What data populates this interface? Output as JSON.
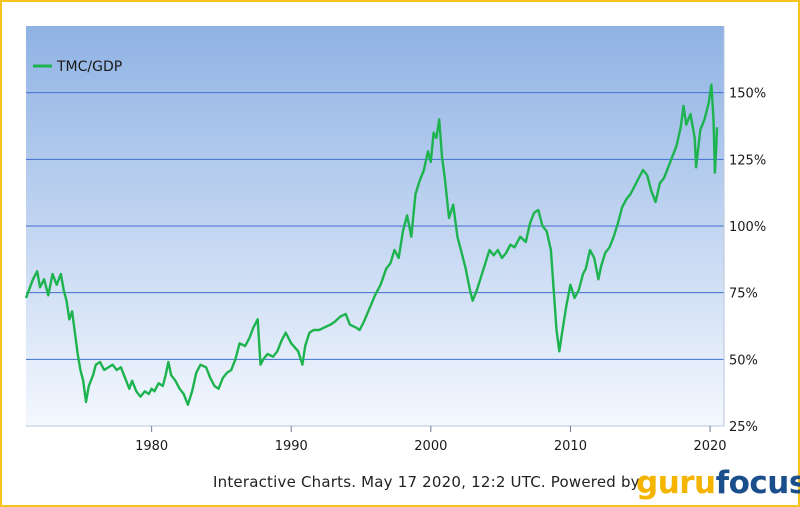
{
  "chart_data": {
    "type": "line",
    "legend_position": "top-left",
    "grid": true,
    "ylim": [
      25,
      175
    ],
    "xlim": [
      1971,
      2021
    ],
    "y_ticks": [
      25,
      50,
      75,
      100,
      125,
      150
    ],
    "y_tick_labels": [
      "25%",
      "50%",
      "75%",
      "100%",
      "125%",
      "150%"
    ],
    "x_ticks": [
      1980,
      1990,
      2000,
      2010,
      2020
    ],
    "x_tick_labels": [
      "1980",
      "1990",
      "2000",
      "2010",
      "2020"
    ],
    "series": [
      {
        "name": "TMC/GDP",
        "color": "#1db34f",
        "points": [
          [
            1971.0,
            73
          ],
          [
            1971.5,
            80
          ],
          [
            1971.8,
            83
          ],
          [
            1972.0,
            77
          ],
          [
            1972.3,
            80
          ],
          [
            1972.6,
            74
          ],
          [
            1972.9,
            82
          ],
          [
            1973.2,
            78
          ],
          [
            1973.5,
            82
          ],
          [
            1973.7,
            76
          ],
          [
            1973.9,
            72
          ],
          [
            1974.1,
            65
          ],
          [
            1974.3,
            68
          ],
          [
            1974.5,
            60
          ],
          [
            1974.7,
            52
          ],
          [
            1974.9,
            46
          ],
          [
            1975.1,
            42
          ],
          [
            1975.3,
            34
          ],
          [
            1975.5,
            40
          ],
          [
            1975.8,
            44
          ],
          [
            1976.0,
            48
          ],
          [
            1976.3,
            49
          ],
          [
            1976.6,
            46
          ],
          [
            1976.9,
            47
          ],
          [
            1977.2,
            48
          ],
          [
            1977.5,
            46
          ],
          [
            1977.8,
            47
          ],
          [
            1978.1,
            43
          ],
          [
            1978.4,
            39
          ],
          [
            1978.6,
            42
          ],
          [
            1978.9,
            38
          ],
          [
            1979.2,
            36
          ],
          [
            1979.5,
            38
          ],
          [
            1979.8,
            37
          ],
          [
            1980.0,
            39
          ],
          [
            1980.2,
            38
          ],
          [
            1980.5,
            41
          ],
          [
            1980.8,
            40
          ],
          [
            1981.0,
            44
          ],
          [
            1981.2,
            49
          ],
          [
            1981.4,
            44
          ],
          [
            1981.7,
            42
          ],
          [
            1982.0,
            39
          ],
          [
            1982.3,
            37
          ],
          [
            1982.6,
            33
          ],
          [
            1982.9,
            38
          ],
          [
            1983.2,
            45
          ],
          [
            1983.5,
            48
          ],
          [
            1983.9,
            47
          ],
          [
            1984.2,
            43
          ],
          [
            1984.5,
            40
          ],
          [
            1984.8,
            39
          ],
          [
            1985.1,
            43
          ],
          [
            1985.4,
            45
          ],
          [
            1985.7,
            46
          ],
          [
            1986.0,
            50
          ],
          [
            1986.3,
            56
          ],
          [
            1986.7,
            55
          ],
          [
            1987.0,
            58
          ],
          [
            1987.3,
            62
          ],
          [
            1987.6,
            65
          ],
          [
            1987.8,
            48
          ],
          [
            1988.0,
            50
          ],
          [
            1988.3,
            52
          ],
          [
            1988.7,
            51
          ],
          [
            1989.0,
            53
          ],
          [
            1989.3,
            57
          ],
          [
            1989.6,
            60
          ],
          [
            1990.0,
            56
          ],
          [
            1990.5,
            53
          ],
          [
            1990.8,
            48
          ],
          [
            1991.0,
            55
          ],
          [
            1991.3,
            60
          ],
          [
            1991.6,
            61
          ],
          [
            1992.0,
            61
          ],
          [
            1992.4,
            62
          ],
          [
            1992.8,
            63
          ],
          [
            1993.1,
            64
          ],
          [
            1993.5,
            66
          ],
          [
            1993.9,
            67
          ],
          [
            1994.2,
            63
          ],
          [
            1994.6,
            62
          ],
          [
            1994.9,
            61
          ],
          [
            1995.2,
            64
          ],
          [
            1995.6,
            69
          ],
          [
            1996.0,
            74
          ],
          [
            1996.4,
            78
          ],
          [
            1996.8,
            84
          ],
          [
            1997.1,
            86
          ],
          [
            1997.4,
            91
          ],
          [
            1997.7,
            88
          ],
          [
            1998.0,
            98
          ],
          [
            1998.3,
            104
          ],
          [
            1998.6,
            96
          ],
          [
            1998.9,
            112
          ],
          [
            1999.2,
            117
          ],
          [
            1999.5,
            121
          ],
          [
            1999.8,
            128
          ],
          [
            2000.0,
            124
          ],
          [
            2000.2,
            135
          ],
          [
            2000.4,
            133
          ],
          [
            2000.6,
            140
          ],
          [
            2000.8,
            126
          ],
          [
            2001.0,
            118
          ],
          [
            2001.3,
            103
          ],
          [
            2001.6,
            108
          ],
          [
            2001.9,
            96
          ],
          [
            2002.2,
            90
          ],
          [
            2002.5,
            84
          ],
          [
            2002.8,
            76
          ],
          [
            2003.0,
            72
          ],
          [
            2003.3,
            76
          ],
          [
            2003.6,
            81
          ],
          [
            2003.9,
            86
          ],
          [
            2004.2,
            91
          ],
          [
            2004.5,
            89
          ],
          [
            2004.8,
            91
          ],
          [
            2005.1,
            88
          ],
          [
            2005.4,
            90
          ],
          [
            2005.7,
            93
          ],
          [
            2006.0,
            92
          ],
          [
            2006.4,
            96
          ],
          [
            2006.8,
            94
          ],
          [
            2007.1,
            101
          ],
          [
            2007.4,
            105
          ],
          [
            2007.7,
            106
          ],
          [
            2008.0,
            100
          ],
          [
            2008.3,
            98
          ],
          [
            2008.6,
            91
          ],
          [
            2008.8,
            76
          ],
          [
            2009.0,
            61
          ],
          [
            2009.2,
            53
          ],
          [
            2009.4,
            60
          ],
          [
            2009.7,
            70
          ],
          [
            2010.0,
            78
          ],
          [
            2010.3,
            73
          ],
          [
            2010.6,
            76
          ],
          [
            2010.9,
            82
          ],
          [
            2011.1,
            84
          ],
          [
            2011.4,
            91
          ],
          [
            2011.7,
            88
          ],
          [
            2012.0,
            80
          ],
          [
            2012.2,
            85
          ],
          [
            2012.5,
            90
          ],
          [
            2012.8,
            92
          ],
          [
            2013.1,
            96
          ],
          [
            2013.4,
            101
          ],
          [
            2013.7,
            107
          ],
          [
            2014.0,
            110
          ],
          [
            2014.3,
            112
          ],
          [
            2014.6,
            115
          ],
          [
            2014.9,
            118
          ],
          [
            2015.2,
            121
          ],
          [
            2015.5,
            119
          ],
          [
            2015.8,
            113
          ],
          [
            2016.1,
            109
          ],
          [
            2016.4,
            116
          ],
          [
            2016.7,
            118
          ],
          [
            2017.0,
            122
          ],
          [
            2017.3,
            126
          ],
          [
            2017.6,
            130
          ],
          [
            2017.9,
            137
          ],
          [
            2018.1,
            145
          ],
          [
            2018.3,
            138
          ],
          [
            2018.6,
            142
          ],
          [
            2018.9,
            133
          ],
          [
            2019.0,
            122
          ],
          [
            2019.3,
            136
          ],
          [
            2019.6,
            140
          ],
          [
            2019.9,
            146
          ],
          [
            2020.1,
            153
          ],
          [
            2020.25,
            140
          ],
          [
            2020.35,
            120
          ],
          [
            2020.45,
            130
          ],
          [
            2020.5,
            137
          ]
        ]
      }
    ]
  },
  "footer": {
    "text": "Interactive Charts. May 17 2020, 12:2 UTC. Powered by",
    "logo_part1": "guru",
    "logo_part2": "focus"
  },
  "colors": {
    "line": "#1db34f",
    "grid": "#3f6fd0",
    "plot_top": "#8fb2e4",
    "plot_bottom": "#f4f8fe",
    "border": "#f6c21c",
    "logo_guru": "#f4b400",
    "logo_focus": "#1b4f8c"
  }
}
